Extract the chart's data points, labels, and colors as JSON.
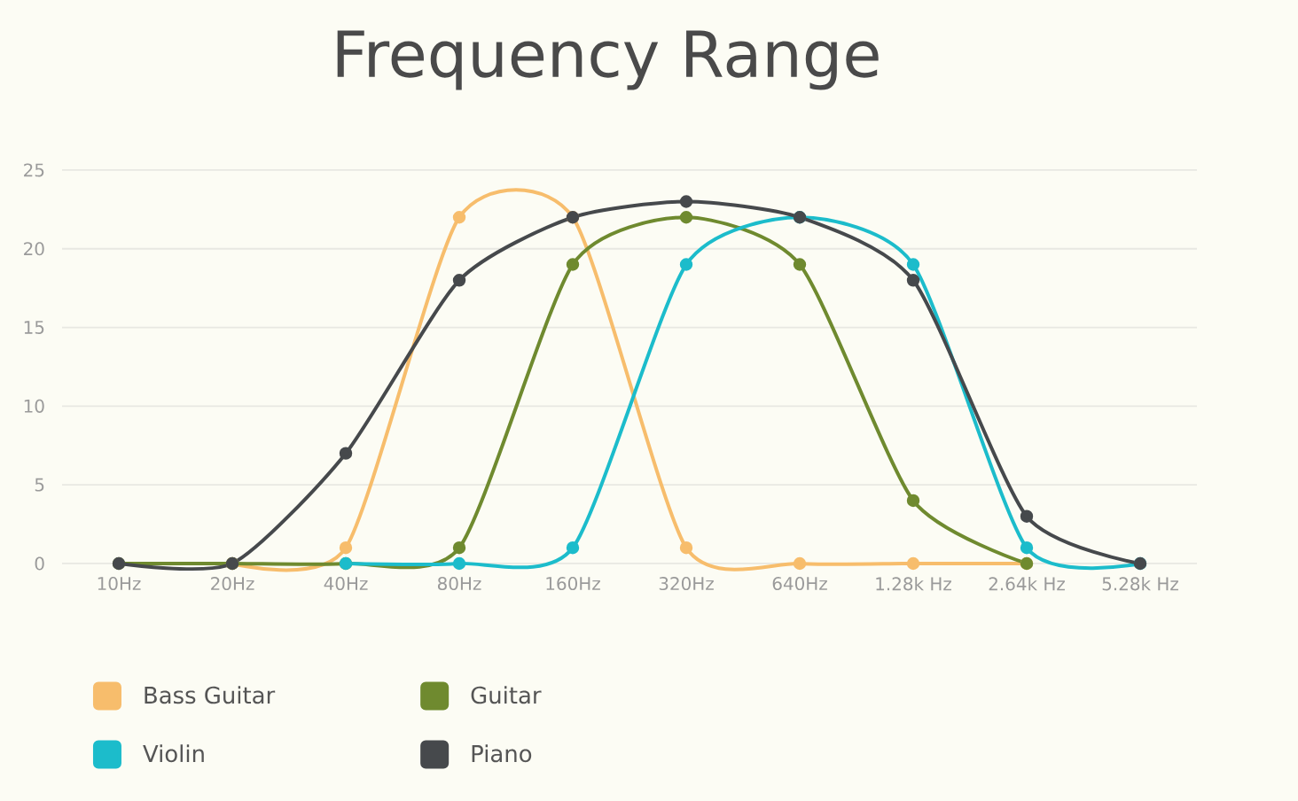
{
  "chart_data": {
    "type": "line",
    "title": "Frequency Range",
    "categories": [
      "10Hz",
      "20Hz",
      "40Hz",
      "80Hz",
      "160Hz",
      "320Hz",
      "640Hz",
      "1.28k Hz",
      "2.64k Hz",
      "5.28k Hz"
    ],
    "series": [
      {
        "name": "Bass Guitar",
        "color": "#f7bd6c",
        "values": [
          null,
          0,
          1,
          22,
          22,
          1,
          0,
          0,
          0,
          null
        ]
      },
      {
        "name": "Guitar",
        "color": "#6f8a2f",
        "values": [
          0,
          0,
          0,
          1,
          19,
          22,
          19,
          4,
          0,
          null
        ]
      },
      {
        "name": "Violin",
        "color": "#1cbccb",
        "values": [
          null,
          null,
          0,
          0,
          1,
          19,
          22,
          19,
          1,
          0
        ]
      },
      {
        "name": "Piano",
        "color": "#46494c",
        "values": [
          0,
          0,
          7,
          18,
          22,
          23,
          22,
          18,
          3,
          0
        ]
      }
    ],
    "ylim": [
      0,
      25
    ],
    "yticks": [
      0,
      5,
      10,
      15,
      20,
      25
    ],
    "grid": "y",
    "legend": "bottom left",
    "marker": "circle",
    "line_style": "solid"
  }
}
